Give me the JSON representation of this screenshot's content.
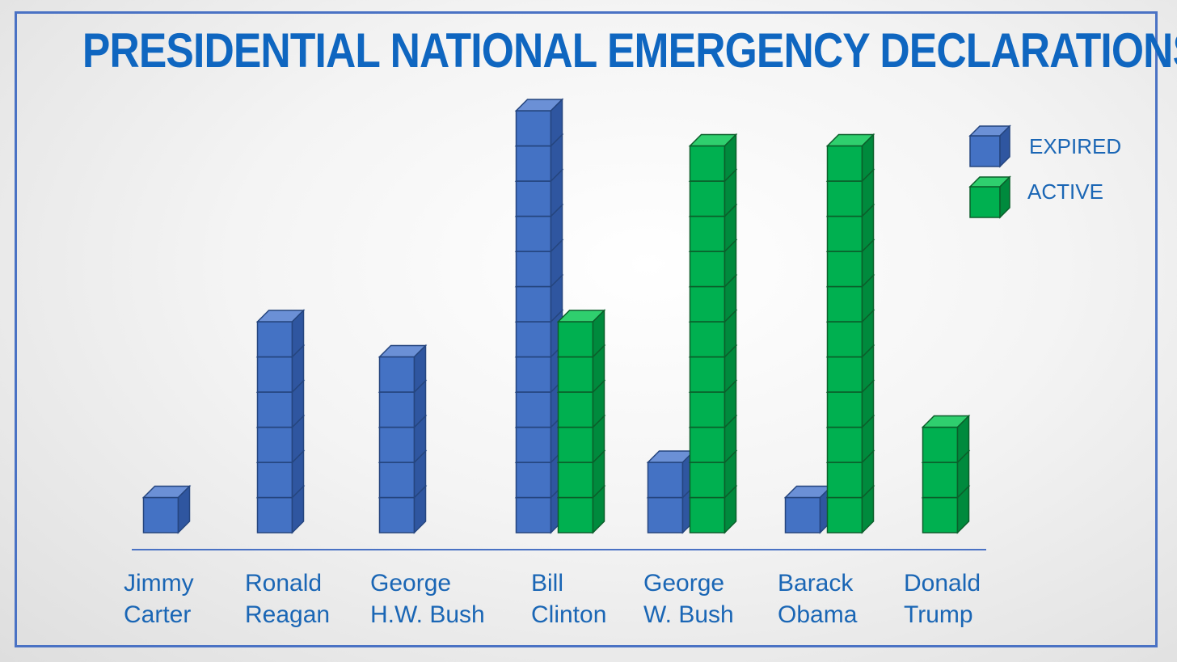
{
  "title": "PRESIDENTIAL NATIONAL EMERGENCY DECLARATIONS",
  "legend": [
    {
      "label": "EXPIRED",
      "color": "#4472c4"
    },
    {
      "label": "ACTIVE",
      "color": "#00b050"
    }
  ],
  "chart_data": {
    "type": "bar",
    "title": "PRESIDENTIAL NATIONAL EMERGENCY DECLARATIONS",
    "categories": [
      {
        "first": "Jimmy",
        "last": "Carter"
      },
      {
        "first": "Ronald",
        "last": "Reagan"
      },
      {
        "first": "George",
        "last": "H.W. Bush"
      },
      {
        "first": "Bill",
        "last": "Clinton"
      },
      {
        "first": "George",
        "last": "W. Bush"
      },
      {
        "first": "Barack",
        "last": "Obama"
      },
      {
        "first": "Donald",
        "last": "Trump"
      }
    ],
    "series": [
      {
        "name": "EXPIRED",
        "values": [
          1,
          6,
          5,
          12,
          2,
          1,
          0
        ]
      },
      {
        "name": "ACTIVE",
        "values": [
          0,
          0,
          0,
          6,
          11,
          11,
          3
        ]
      }
    ],
    "xlabel": "",
    "ylabel": "",
    "grid": false
  }
}
